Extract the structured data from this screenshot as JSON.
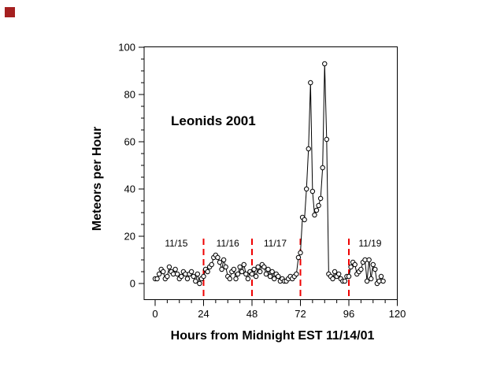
{
  "decoration": {
    "corner_square_color": "#a52020"
  },
  "chart_data": {
    "type": "line",
    "annotation": "Leonids 2001",
    "xlabel": "Hours from Midnight EST 11/14/01",
    "ylabel": "Meteors per Hour",
    "xlim": [
      -5.5,
      120
    ],
    "ylim": [
      -6.8,
      100.3
    ],
    "x_major_ticks": [
      0,
      24,
      48,
      72,
      96,
      120
    ],
    "x_minor_tick_interval": 6,
    "y_major_ticks": [
      0,
      20,
      40,
      60,
      80,
      100
    ],
    "y_minor_tick_interval": 5,
    "grid": false,
    "legend": "none",
    "line_color": "#000000",
    "marker": "open-circle-white-fill",
    "day_dividers": {
      "color": "#ee0000",
      "style": "dashed",
      "x_hours": [
        24,
        48,
        72,
        96
      ],
      "y_span_values": [
        -6.3,
        19
      ]
    },
    "day_labels": [
      {
        "text": "11/15",
        "x_hour": 10.5
      },
      {
        "text": "11/16",
        "x_hour": 36
      },
      {
        "text": "11/17",
        "x_hour": 59.5
      },
      {
        "text": "11/19",
        "x_hour": 106.5
      }
    ],
    "x_start_hour": 0,
    "x_step_hours": 1,
    "values": [
      2,
      2,
      4,
      6,
      5,
      2,
      3,
      7,
      5,
      4,
      6,
      4,
      2,
      3,
      5,
      4,
      2,
      4,
      5,
      3,
      1,
      4,
      0,
      2,
      3,
      6,
      5,
      7,
      8,
      11,
      12,
      11,
      9,
      6,
      10,
      7,
      3,
      2,
      5,
      6,
      2,
      4,
      7,
      5,
      8,
      4,
      2,
      5,
      4,
      6,
      3,
      7,
      5,
      8,
      7,
      4,
      6,
      3,
      5,
      2,
      4,
      3,
      1,
      2,
      1,
      1,
      2,
      3,
      2,
      3,
      4,
      11,
      13,
      28,
      27,
      40,
      57,
      85,
      39,
      29,
      31,
      33,
      36,
      49,
      93,
      61,
      4,
      3,
      2,
      5,
      3,
      4,
      2,
      1,
      1,
      3,
      3,
      7,
      9,
      8,
      4,
      5,
      6,
      9,
      10,
      1,
      10,
      2,
      8,
      6,
      0,
      1,
      3,
      1
    ]
  }
}
